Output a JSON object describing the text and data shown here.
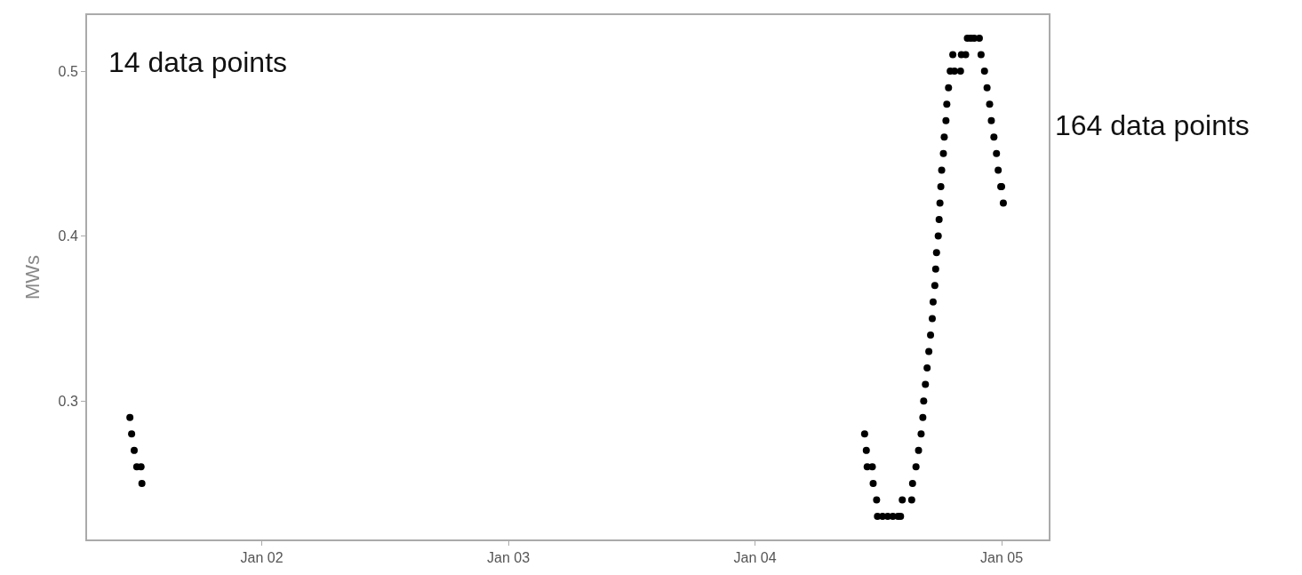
{
  "chart_data": {
    "type": "scatter",
    "ylabel": "MWs",
    "annotations": [
      "14 data points",
      "164 data points"
    ],
    "x": [
      "--01-01T11:10",
      "--01-01T11:20",
      "--01-01T11:35",
      "--01-01T11:50",
      "--01-01T12:15",
      "--01-01T12:20",
      "--01-04T10:40",
      "--01-04T10:50",
      "--01-04T10:55",
      "--01-04T11:25",
      "--01-04T11:30",
      "--01-04T11:50",
      "--01-04T11:55",
      "--01-04T12:25",
      "--01-04T12:55",
      "--01-04T13:25",
      "--01-04T13:55",
      "--01-04T14:10",
      "--01-04T14:20",
      "--01-04T15:15",
      "--01-04T15:20",
      "--01-04T15:40",
      "--01-04T15:55",
      "--01-04T16:10",
      "--01-04T16:20",
      "--01-04T16:25",
      "--01-04T16:35",
      "--01-04T16:45",
      "--01-04T16:55",
      "--01-04T17:05",
      "--01-04T17:15",
      "--01-04T17:20",
      "--01-04T17:30",
      "--01-04T17:35",
      "--01-04T17:40",
      "--01-04T17:50",
      "--01-04T17:55",
      "--01-04T18:00",
      "--01-04T18:05",
      "--01-04T18:10",
      "--01-04T18:20",
      "--01-04T18:25",
      "--01-04T18:35",
      "--01-04T18:40",
      "--01-04T18:50",
      "--01-04T19:00",
      "--01-04T19:15",
      "--01-04T19:25",
      "--01-04T20:00",
      "--01-04T20:05",
      "--01-04T20:30",
      "--01-04T20:40",
      "--01-04T21:00",
      "--01-04T21:20",
      "--01-04T21:50",
      "--01-04T22:00",
      "--01-04T22:20",
      "--01-04T22:35",
      "--01-04T22:50",
      "--01-04T23:00",
      "--01-04T23:15",
      "--01-04T23:30",
      "--01-04T23:40",
      "--01-04T23:55",
      "--01-05T00:00",
      "--01-05T00:10"
    ],
    "series": [
      {
        "color": "#000000",
        "values": [
          0.29,
          0.28,
          0.27,
          0.26,
          0.26,
          0.25,
          0.28,
          0.27,
          0.26,
          0.26,
          0.25,
          0.24,
          0.23,
          0.23,
          0.23,
          0.23,
          0.23,
          0.23,
          0.24,
          0.24,
          0.25,
          0.26,
          0.27,
          0.28,
          0.29,
          0.3,
          0.31,
          0.32,
          0.33,
          0.34,
          0.35,
          0.36,
          0.37,
          0.38,
          0.39,
          0.4,
          0.41,
          0.42,
          0.43,
          0.44,
          0.45,
          0.46,
          0.47,
          0.48,
          0.49,
          0.5,
          0.51,
          0.5,
          0.5,
          0.51,
          0.51,
          0.52,
          0.52,
          0.52,
          0.52,
          0.51,
          0.5,
          0.49,
          0.48,
          0.47,
          0.46,
          0.45,
          0.44,
          0.43,
          0.43,
          0.42
        ]
      }
    ],
    "xlim": [
      "--01-01T07:00",
      "--01-05T04:35"
    ],
    "xticks": [
      {
        "value": "--01-02",
        "label": "Jan 02"
      },
      {
        "value": "--01-03",
        "label": "Jan 03"
      },
      {
        "value": "--01-04",
        "label": "Jan 04"
      },
      {
        "value": "--01-05",
        "label": "Jan 05"
      }
    ],
    "ylim": [
      0.216,
      0.534
    ],
    "yticks": [
      0.3,
      0.4,
      0.5
    ],
    "grid": false,
    "marker": "circle"
  }
}
